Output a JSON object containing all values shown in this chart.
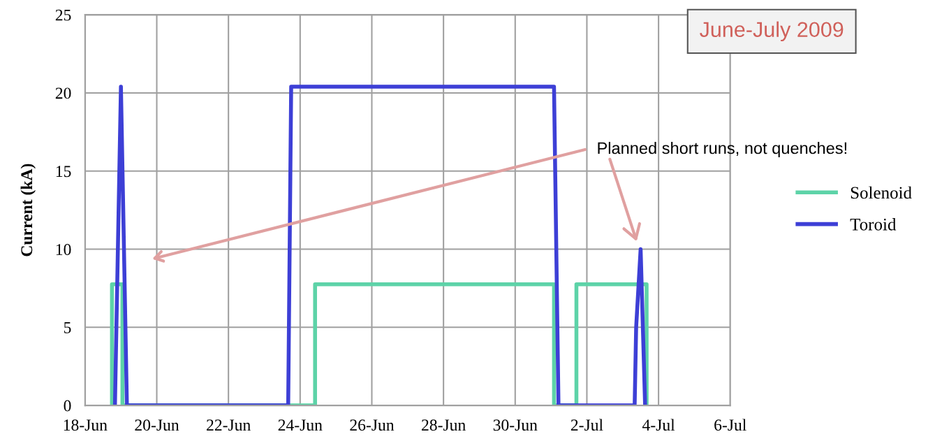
{
  "chart_data": {
    "type": "line",
    "title": "June-July 2009",
    "ylabel": "Current (kA)",
    "xlim": [
      "2009-06-18",
      "2009-07-06"
    ],
    "xticks": [
      {
        "value": "2009-06-18",
        "label": "18-Jun"
      },
      {
        "value": "2009-06-20",
        "label": "20-Jun"
      },
      {
        "value": "2009-06-22",
        "label": "22-Jun"
      },
      {
        "value": "2009-06-24",
        "label": "24-Jun"
      },
      {
        "value": "2009-06-26",
        "label": "26-Jun"
      },
      {
        "value": "2009-06-28",
        "label": "28-Jun"
      },
      {
        "value": "2009-06-30",
        "label": "30-Jun"
      },
      {
        "value": "2009-07-02",
        "label": "2-Jul"
      },
      {
        "value": "2009-07-04",
        "label": "4-Jul"
      },
      {
        "value": "2009-07-06",
        "label": "6-Jul"
      }
    ],
    "ylim": [
      0,
      25
    ],
    "yticks": [
      0,
      5,
      10,
      15,
      20,
      25
    ],
    "grid": true,
    "legend": "right",
    "marker": "none",
    "line_style": "solid",
    "series": [
      {
        "name": "Solenoid",
        "color": "#5dd3a8",
        "x": [
          "2009-06-18T18:00",
          "2009-06-18T18:00",
          "2009-06-19T01:00",
          "2009-06-19T01:00",
          "2009-06-24T10:00",
          "2009-06-24T10:00",
          "2009-07-01T02:00",
          "2009-07-01T02:00",
          "2009-07-01T17:00",
          "2009-07-01T17:00",
          "2009-07-03T16:00",
          "2009-07-03T16:00"
        ],
        "values": [
          0,
          7.75,
          7.75,
          0,
          0,
          7.75,
          7.75,
          0,
          0,
          7.75,
          7.75,
          0
        ]
      },
      {
        "name": "Toroid",
        "color": "#3d3fd6",
        "x": [
          "2009-06-18T20:00",
          "2009-06-19T00:00",
          "2009-06-19T04:00",
          "2009-06-23T16:00",
          "2009-06-23T18:00",
          "2009-07-01T02:00",
          "2009-07-01T05:00",
          "2009-07-03T08:00",
          "2009-07-03T09:00",
          "2009-07-03T12:00",
          "2009-07-03T15:00"
        ],
        "values": [
          0,
          20.4,
          0,
          0,
          20.4,
          20.4,
          0,
          0,
          5,
          10,
          0
        ]
      }
    ],
    "annotations": [
      "Planned short runs, not quenches!"
    ]
  }
}
